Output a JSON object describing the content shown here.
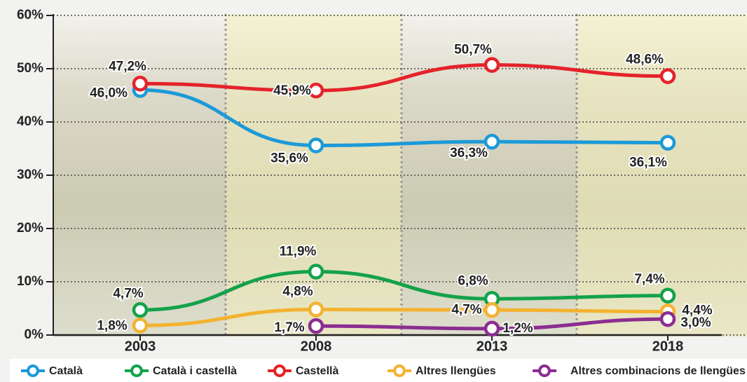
{
  "chart_data": {
    "type": "line",
    "categories": [
      "2003",
      "2008",
      "2013",
      "2018"
    ],
    "ylim": [
      0,
      60
    ],
    "yticks": [
      {
        "value": 0,
        "label": "0%"
      },
      {
        "value": 10,
        "label": "10%"
      },
      {
        "value": 20,
        "label": "20%"
      },
      {
        "value": 30,
        "label": "30%"
      },
      {
        "value": 40,
        "label": "40%"
      },
      {
        "value": 50,
        "label": "50%"
      },
      {
        "value": 60,
        "label": "60%"
      }
    ],
    "grid": true,
    "legend": "bottom",
    "series": [
      {
        "name": "Català",
        "color": "#1c9ad8",
        "values": [
          46.0,
          35.6,
          36.3,
          36.1
        ],
        "value_labels": [
          "46,0%",
          "35,6%",
          "36,3%",
          "36,1%"
        ]
      },
      {
        "name": "Català i castellà",
        "color": "#14a24a",
        "values": [
          4.7,
          11.9,
          6.8,
          7.4
        ],
        "value_labels": [
          "4,7%",
          "11,9%",
          "6,8%",
          "7,4%"
        ]
      },
      {
        "name": "Castellà",
        "color": "#e4232a",
        "values": [
          47.2,
          45.9,
          50.7,
          48.6
        ],
        "value_labels": [
          "47,2%",
          "45,9%",
          "50,7%",
          "48,6%"
        ]
      },
      {
        "name": "Altres llengües",
        "color": "#f4b230",
        "values": [
          1.8,
          4.8,
          4.7,
          4.4
        ],
        "value_labels": [
          "1,8%",
          "4,8%",
          "4,7%",
          "4,4%"
        ]
      },
      {
        "name": "Altres combinacions de llengües",
        "color": "#8b2d91",
        "values": [
          null,
          1.7,
          1.2,
          3.0
        ],
        "value_labels": [
          null,
          "1,7%",
          "1,2%",
          "3,0%"
        ]
      }
    ]
  }
}
